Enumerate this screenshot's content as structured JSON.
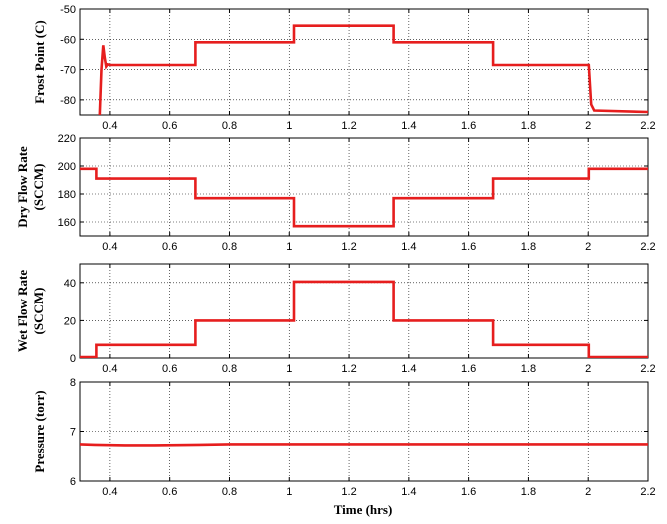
{
  "xlabel": "Time (hrs)",
  "line_color": "#e61e1e",
  "chart_data": [
    {
      "type": "line",
      "ylabel": "Frost Point (C)",
      "xlim": [
        0.3,
        2.2
      ],
      "ylim": [
        -85,
        -50
      ],
      "xticks": [
        0.4,
        0.6,
        0.8,
        1,
        1.2,
        1.4,
        1.6,
        1.8,
        2,
        2.2
      ],
      "xtick_labels": [
        "0.4",
        "0.6",
        "0.8",
        "1",
        "1.2",
        "1.4",
        "1.6",
        "1.8",
        "2",
        "2.2"
      ],
      "yticks": [
        -80,
        -70,
        -60,
        -50
      ],
      "ytick_labels": [
        "-80",
        "-70",
        "-60",
        "-50"
      ],
      "grid": true,
      "series": [
        {
          "x": [
            0.366,
            0.372,
            0.378,
            0.383,
            0.388,
            0.393,
            0.4,
            0.42,
            0.686,
            0.686,
            1.016,
            1.016,
            1.349,
            1.349,
            1.682,
            1.682,
            2.002,
            2.01,
            2.02,
            2.2
          ],
          "y": [
            -86,
            -70,
            -62,
            -66,
            -69,
            -68.3,
            -68.5,
            -68.5,
            -68.5,
            -61,
            -61,
            -55.5,
            -55.5,
            -61,
            -61,
            -68.5,
            -68.5,
            -81.5,
            -83.5,
            -84
          ]
        }
      ]
    },
    {
      "type": "line",
      "ylabel": "Dry Flow Rate\n(SCCM)",
      "xlim": [
        0.3,
        2.2
      ],
      "ylim": [
        150,
        220
      ],
      "xticks": [
        0.4,
        0.6,
        0.8,
        1,
        1.2,
        1.4,
        1.6,
        1.8,
        2,
        2.2
      ],
      "xtick_labels": [
        "0.4",
        "0.6",
        "0.8",
        "1",
        "1.2",
        "1.4",
        "1.6",
        "1.8",
        "2",
        "2.2"
      ],
      "yticks": [
        160,
        180,
        200,
        220
      ],
      "ytick_labels": [
        "160",
        "180",
        "200",
        "220"
      ],
      "grid": true,
      "series": [
        {
          "x": [
            0.3,
            0.355,
            0.355,
            0.686,
            0.686,
            1.016,
            1.016,
            1.349,
            1.349,
            1.682,
            1.682,
            2.002,
            2.002,
            2.2
          ],
          "y": [
            198,
            198,
            191,
            191,
            177,
            177,
            157,
            157,
            177,
            177,
            191,
            191,
            198,
            198
          ]
        }
      ]
    },
    {
      "type": "line",
      "ylabel": "Wet Flow Rate\n(SCCM)",
      "xlim": [
        0.3,
        2.2
      ],
      "ylim": [
        0,
        50
      ],
      "xticks": [
        0.4,
        0.6,
        0.8,
        1,
        1.2,
        1.4,
        1.6,
        1.8,
        2,
        2.2
      ],
      "xtick_labels": [
        "0.4",
        "0.6",
        "0.8",
        "1",
        "1.2",
        "1.4",
        "1.6",
        "1.8",
        "2",
        "2.2"
      ],
      "yticks": [
        0,
        20,
        40
      ],
      "ytick_labels": [
        "0",
        "20",
        "40"
      ],
      "grid": true,
      "series": [
        {
          "x": [
            0.3,
            0.355,
            0.355,
            0.686,
            0.686,
            1.016,
            1.016,
            1.349,
            1.349,
            1.682,
            1.682,
            2.002,
            2.002,
            2.2
          ],
          "y": [
            0.5,
            0.5,
            7,
            7,
            20,
            20,
            40.5,
            40.5,
            20,
            20,
            7,
            7,
            0.5,
            0.5
          ]
        }
      ]
    },
    {
      "type": "line",
      "ylabel": "Pressure (torr)",
      "xlim": [
        0.3,
        2.2
      ],
      "ylim": [
        6,
        8
      ],
      "xticks": [
        0.4,
        0.6,
        0.8,
        1,
        1.2,
        1.4,
        1.6,
        1.8,
        2,
        2.2
      ],
      "xtick_labels": [
        "0.4",
        "0.6",
        "0.8",
        "1",
        "1.2",
        "1.4",
        "1.6",
        "1.8",
        "2",
        "2.2"
      ],
      "yticks": [
        6,
        7,
        8
      ],
      "ytick_labels": [
        "6",
        "7",
        "8"
      ],
      "grid": true,
      "series": [
        {
          "x": [
            0.3,
            0.35,
            0.45,
            0.55,
            0.7,
            0.8,
            1.2,
            2.2
          ],
          "y": [
            6.74,
            6.73,
            6.72,
            6.72,
            6.73,
            6.74,
            6.74,
            6.74
          ]
        }
      ]
    }
  ]
}
